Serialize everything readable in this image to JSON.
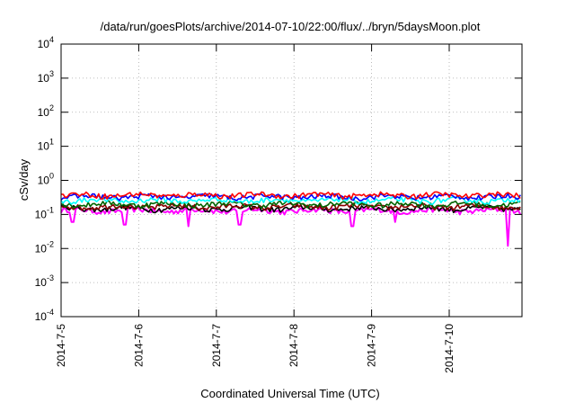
{
  "chart_data": {
    "type": "line",
    "title": "/data/run/goesPlots/archive/2014-07-10/22:00/flux/../bryn/5daysMoon.plot",
    "xlabel": "Coordinated Universal Time (UTC)",
    "ylabel": "cSv/day",
    "yscale": "log",
    "ylim": [
      0.0001,
      10000
    ],
    "xlim": [
      "2014-07-05",
      "2014-07-10 22:00"
    ],
    "grid": true,
    "x_ticks": [
      "2014-7-5",
      "2014-7-6",
      "2014-7-7",
      "2014-7-8",
      "2014-7-9",
      "2014-7-10"
    ],
    "y_ticks": [
      {
        "value": 0.0001,
        "base": "10",
        "exp": "-4"
      },
      {
        "value": 0.001,
        "base": "10",
        "exp": "-3"
      },
      {
        "value": 0.01,
        "base": "10",
        "exp": "-2"
      },
      {
        "value": 0.1,
        "base": "10",
        "exp": "-1"
      },
      {
        "value": 1,
        "base": "10",
        "exp": "0"
      },
      {
        "value": 10,
        "base": "10",
        "exp": "1"
      },
      {
        "value": 100,
        "base": "10",
        "exp": "2"
      },
      {
        "value": 1000,
        "base": "10",
        "exp": "3"
      },
      {
        "value": 10000,
        "base": "10",
        "exp": "4"
      }
    ],
    "series": [
      {
        "color": "#ff00ff",
        "base": 0.13,
        "spikes": [
          {
            "x": 0.15,
            "y": 0.06
          },
          {
            "x": 0.82,
            "y": 0.05
          },
          {
            "x": 1.65,
            "y": 0.045
          },
          {
            "x": 2.3,
            "y": 0.05
          },
          {
            "x": 3.75,
            "y": 0.045
          },
          {
            "x": 4.3,
            "y": 0.06
          },
          {
            "x": 5.75,
            "y": 0.012
          }
        ]
      },
      {
        "color": "#000000",
        "base": 0.15,
        "spikes": []
      },
      {
        "color": "#8b0000",
        "base": 0.17,
        "spikes": []
      },
      {
        "color": "#006400",
        "base": 0.2,
        "spikes": []
      },
      {
        "color": "#00ffff",
        "base": 0.26,
        "spikes": []
      },
      {
        "color": "#0000ff",
        "base": 0.33,
        "spikes": []
      },
      {
        "color": "#ff0000",
        "base": 0.37,
        "spikes": []
      }
    ]
  }
}
